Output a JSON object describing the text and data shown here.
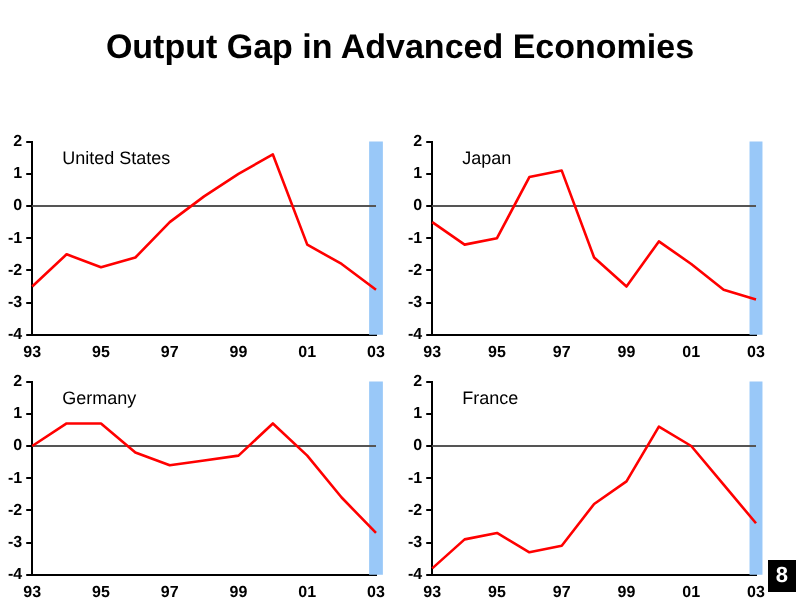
{
  "chart_data": [
    {
      "type": "line",
      "title": "United States",
      "annotations": [
        "Output Gap in Advanced Economies"
      ],
      "categories": [
        "93",
        null,
        "95",
        null,
        "97",
        null,
        "99",
        null,
        "01",
        null,
        "03"
      ],
      "series": [
        {
          "color": "#ff0000",
          "values": [
            -2.5,
            -1.5,
            -1.9,
            -1.6,
            -0.5,
            0.3,
            1.0,
            1.6,
            -1.2,
            -1.8,
            -2.6
          ]
        }
      ],
      "ylim": [
        -4,
        2
      ],
      "yticks": [
        -4,
        -3,
        -2,
        -1,
        0,
        1,
        2
      ],
      "grid": false,
      "legend": false,
      "marker": "none",
      "ref_lines": [
        {
          "axis": "y",
          "value": 0,
          "color": "#555555"
        }
      ],
      "bands": [
        {
          "axis": "x",
          "from": "03",
          "to": "03",
          "color": "#99c8f8"
        }
      ]
    },
    {
      "type": "line",
      "title": "Japan",
      "categories": [
        "93",
        null,
        "95",
        null,
        "97",
        null,
        "99",
        null,
        "01",
        null,
        "03"
      ],
      "series": [
        {
          "color": "#ff0000",
          "values": [
            -0.5,
            -1.2,
            -1.0,
            0.9,
            1.1,
            -1.6,
            -2.5,
            -1.1,
            -1.8,
            -2.6,
            -2.9
          ]
        }
      ],
      "ylim": [
        -4,
        2
      ],
      "yticks": [
        -4,
        -3,
        -2,
        -1,
        0,
        1,
        2
      ],
      "grid": false,
      "legend": false,
      "marker": "none",
      "ref_lines": [
        {
          "axis": "y",
          "value": 0,
          "color": "#555555"
        }
      ],
      "bands": [
        {
          "axis": "x",
          "from": "03",
          "to": "03",
          "color": "#99c8f8"
        }
      ]
    },
    {
      "type": "line",
      "title": "Germany",
      "categories": [
        "93",
        null,
        "95",
        null,
        "97",
        null,
        "99",
        null,
        "01",
        null,
        "03"
      ],
      "series": [
        {
          "color": "#ff0000",
          "values": [
            0.0,
            0.7,
            0.7,
            -0.2,
            -0.6,
            -0.45,
            -0.3,
            0.7,
            -0.3,
            -1.6,
            -2.7
          ]
        }
      ],
      "ylim": [
        -4,
        2
      ],
      "yticks": [
        -4,
        -3,
        -2,
        -1,
        0,
        1,
        2
      ],
      "grid": false,
      "legend": false,
      "marker": "none",
      "ref_lines": [
        {
          "axis": "y",
          "value": 0,
          "color": "#555555"
        }
      ],
      "bands": [
        {
          "axis": "x",
          "from": "03",
          "to": "03",
          "color": "#99c8f8"
        }
      ]
    },
    {
      "type": "line",
      "title": "France",
      "annotations": [
        "8"
      ],
      "categories": [
        "93",
        null,
        "95",
        null,
        "97",
        null,
        "99",
        null,
        "01",
        null,
        "03"
      ],
      "series": [
        {
          "color": "#ff0000",
          "values": [
            -3.8,
            -2.9,
            -2.7,
            -3.3,
            -3.1,
            -1.8,
            -1.1,
            0.6,
            0.0,
            -1.2,
            -2.4
          ]
        }
      ],
      "ylim": [
        -4,
        2
      ],
      "yticks": [
        -4,
        -3,
        -2,
        -1,
        0,
        1,
        2
      ],
      "grid": false,
      "legend": false,
      "marker": "none",
      "ref_lines": [
        {
          "axis": "y",
          "value": 0,
          "color": "#555555"
        }
      ],
      "bands": [
        {
          "axis": "x",
          "from": "03",
          "to": "03",
          "color": "#99c8f8"
        }
      ]
    }
  ]
}
